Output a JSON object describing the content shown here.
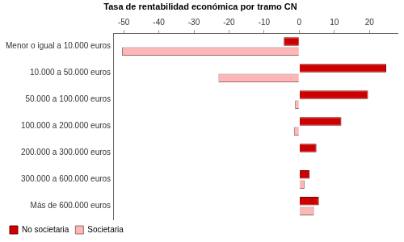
{
  "chart_data": {
    "type": "bar",
    "title": "Tasa de rentabilidad económica por tramo CN",
    "orientation": "horizontal",
    "categories": [
      "Menor o igual a 10.000 euros",
      "10.000 a 50.000 euros",
      "50.000 a 100.000 euros",
      "100.000 a 200.000 euros",
      "200.000 a 300.000 euros",
      "300.000 a 600.000 euros",
      "Más de 600.000 euros"
    ],
    "series": [
      {
        "name": "No societaria",
        "color": "#cc0000",
        "values": [
          -4.4,
          24.8,
          19.6,
          12,
          4.9,
          2.9,
          5.6
        ]
      },
      {
        "name": "Societaria",
        "color": "#ffb6b6",
        "values": [
          -50.5,
          -23,
          -1.2,
          -1.5,
          -0.2,
          1.5,
          4.2
        ]
      }
    ],
    "xlim": [
      -53,
      28
    ],
    "xticks": [
      -50,
      -40,
      -30,
      -20,
      -10,
      0,
      10,
      20
    ],
    "grid": false,
    "legend": "bottom"
  }
}
